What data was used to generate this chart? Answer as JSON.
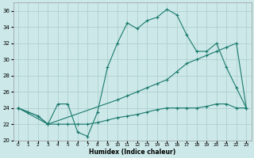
{
  "xlabel": "Humidex (Indice chaleur)",
  "xlim": [
    -0.5,
    23.5
  ],
  "ylim": [
    20,
    37
  ],
  "xticks": [
    0,
    1,
    2,
    3,
    4,
    5,
    6,
    7,
    8,
    9,
    10,
    11,
    12,
    13,
    14,
    15,
    16,
    17,
    18,
    19,
    20,
    21,
    22,
    23
  ],
  "yticks": [
    20,
    22,
    24,
    26,
    28,
    30,
    32,
    34,
    36
  ],
  "bg_color": "#cce8e8",
  "line_color": "#1a7a6e",
  "grid_color": "#aacccc",
  "line1_x": [
    0,
    1,
    2,
    3,
    4,
    5,
    6,
    7,
    8,
    9,
    10,
    11,
    12,
    13,
    14,
    15,
    16,
    17,
    18,
    19,
    20,
    21,
    22,
    23
  ],
  "line1_y": [
    24,
    23.5,
    23,
    22,
    24.5,
    24.5,
    21,
    20.5,
    23.5,
    29,
    32,
    34.5,
    33.8,
    34.8,
    35.2,
    36.2,
    35.5,
    33,
    31,
    31,
    32,
    29,
    26.5,
    24
  ],
  "line2_x": [
    0,
    3,
    10,
    11,
    12,
    13,
    14,
    15,
    16,
    17,
    18,
    19,
    20,
    21,
    22,
    23
  ],
  "line2_y": [
    24,
    22,
    25,
    25.5,
    26,
    26.5,
    27,
    27.5,
    28.5,
    29.5,
    30,
    30.5,
    31,
    31.5,
    32,
    24
  ],
  "line3_x": [
    0,
    1,
    2,
    3,
    4,
    5,
    6,
    7,
    8,
    9,
    10,
    11,
    12,
    13,
    14,
    15,
    16,
    17,
    18,
    19,
    20,
    21,
    22,
    23
  ],
  "line3_y": [
    24,
    23.5,
    23,
    22,
    22,
    22,
    22,
    22,
    22.2,
    22.5,
    22.8,
    23,
    23.2,
    23.5,
    23.8,
    24,
    24,
    24,
    24,
    24.2,
    24.5,
    24.5,
    24,
    24
  ]
}
